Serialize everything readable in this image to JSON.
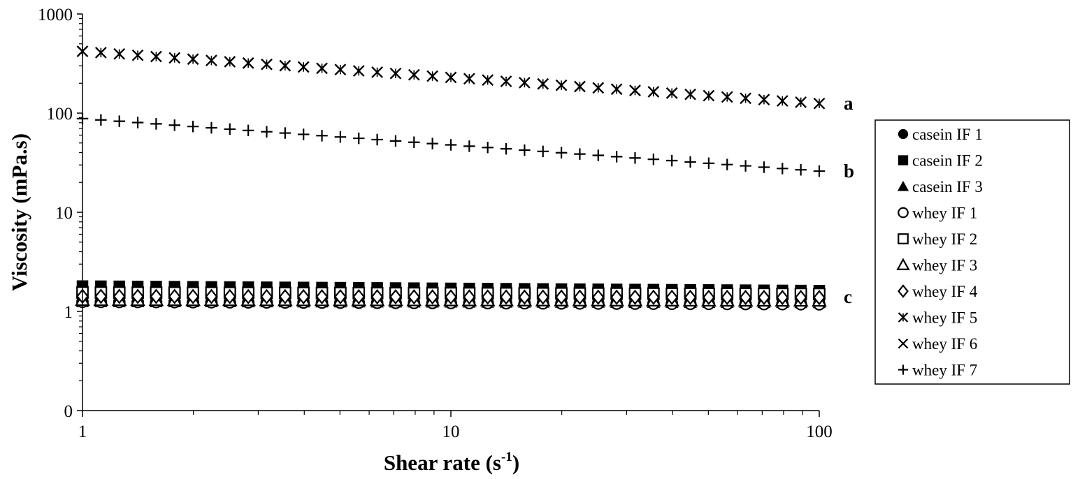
{
  "chart_data": {
    "type": "scatter",
    "title": "",
    "xlabel": "Shear rate (s",
    "xlabel_sup": "-1",
    "xlabel_end": ")",
    "ylabel": "Viscosity (mPa.s)",
    "x_scale": "log",
    "y_scale": "log",
    "xlim": [
      1,
      100
    ],
    "ylim": [
      0.1,
      1000
    ],
    "x_ticks": [
      {
        "value": 1,
        "label": "1"
      },
      {
        "value": 10,
        "label": "10"
      },
      {
        "value": 100,
        "label": "100"
      }
    ],
    "y_ticks": [
      {
        "value": 0.1,
        "label": "0"
      },
      {
        "value": 1,
        "label": "1"
      },
      {
        "value": 10,
        "label": "10"
      },
      {
        "value": 100,
        "label": "100"
      },
      {
        "value": 1000,
        "label": "1000"
      }
    ],
    "grid": false,
    "legend_position": "right",
    "x_points": 41,
    "series": [
      {
        "name": "casein IF 1",
        "marker": "filled-circle",
        "start": 1.25,
        "end": 1.25
      },
      {
        "name": "casein IF 2",
        "marker": "filled-square",
        "start": 1.8,
        "end": 1.62
      },
      {
        "name": "casein IF 3",
        "marker": "filled-triangle",
        "start": 1.25,
        "end": 1.22
      },
      {
        "name": "whey IF 1",
        "marker": "open-circle",
        "start": 1.25,
        "end": 1.18
      },
      {
        "name": "whey IF 2",
        "marker": "open-square",
        "start": 1.55,
        "end": 1.5
      },
      {
        "name": "whey IF 3",
        "marker": "open-triangle",
        "start": 1.3,
        "end": 1.28
      },
      {
        "name": "whey IF 4",
        "marker": "open-diamond",
        "start": 1.42,
        "end": 1.38
      },
      {
        "name": "whey IF 5",
        "marker": "asterisk",
        "start": 420,
        "end": 125
      },
      {
        "name": "whey IF 6",
        "marker": "cross",
        "start": 420,
        "end": 125
      },
      {
        "name": "whey IF 7",
        "marker": "plus",
        "start": 88,
        "end": 26
      }
    ],
    "annotations": [
      {
        "text": "a",
        "x": 100,
        "y": 125
      },
      {
        "text": "b",
        "x": 100,
        "y": 26
      },
      {
        "text": "c",
        "x": 100,
        "y": 1.4
      }
    ]
  }
}
